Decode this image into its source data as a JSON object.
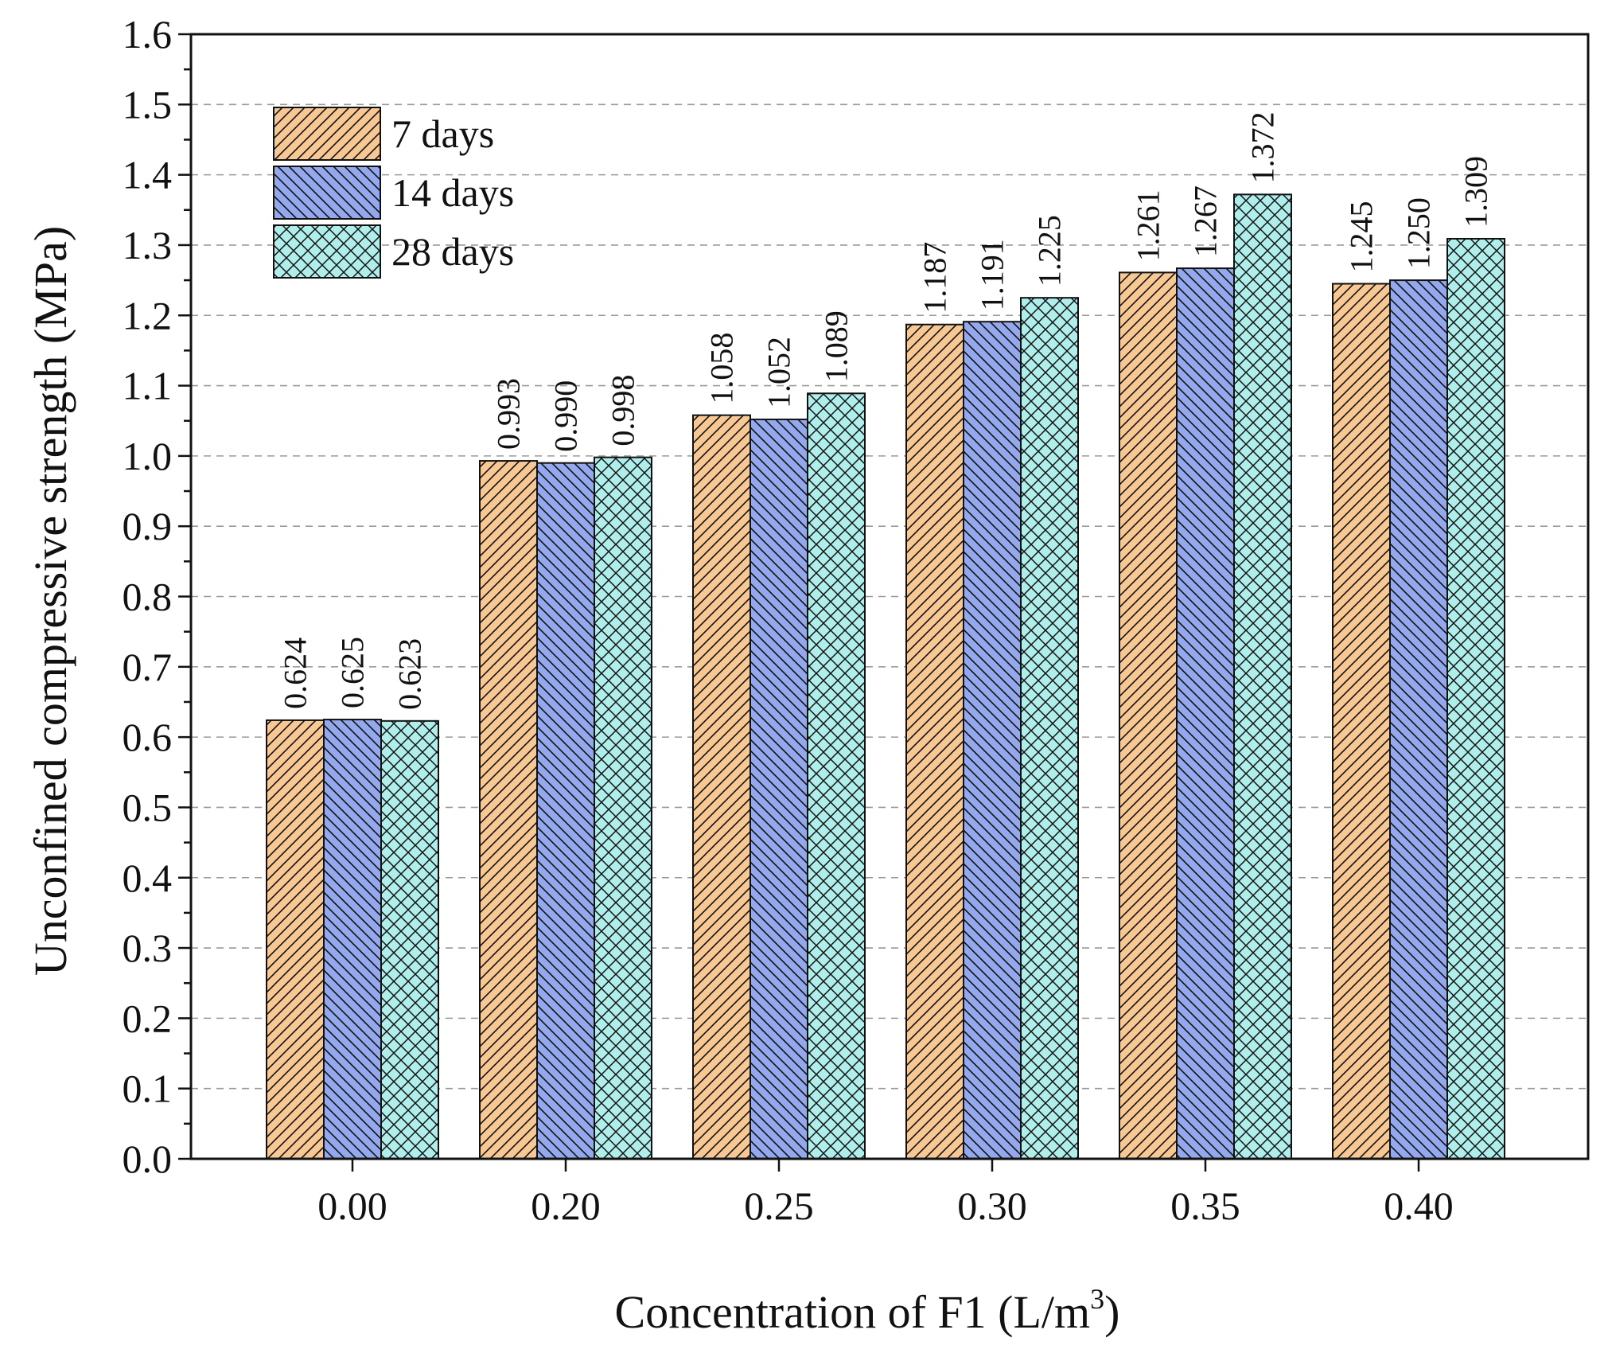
{
  "chart_data": {
    "type": "bar",
    "title": "",
    "xlabel": "Concentration of F1 (L/m",
    "xlabel_sup": "3",
    "xlabel_suffix": ")",
    "ylabel": "Unconfined compressive strength (MPa)",
    "categories": [
      "0.00",
      "0.20",
      "0.25",
      "0.30",
      "0.35",
      "0.40"
    ],
    "series": [
      {
        "name": "7 days",
        "values": [
          0.624,
          0.993,
          1.058,
          1.187,
          1.261,
          1.245
        ],
        "labels": [
          "0.624",
          "0.993",
          "1.058",
          "1.187",
          "1.261",
          "1.245"
        ],
        "color": "#F8C894",
        "pattern": "forward-diagonal"
      },
      {
        "name": "14 days",
        "values": [
          0.625,
          0.99,
          1.052,
          1.191,
          1.267,
          1.25
        ],
        "labels": [
          "0.625",
          "0.990",
          "1.052",
          "1.191",
          "1.267",
          "1.250"
        ],
        "color": "#94A8EE",
        "pattern": "back-diagonal"
      },
      {
        "name": "28 days",
        "values": [
          0.623,
          0.998,
          1.089,
          1.225,
          1.372,
          1.309
        ],
        "labels": [
          "0.623",
          "0.998",
          "1.089",
          "1.225",
          "1.372",
          "1.309"
        ],
        "color": "#B0EEEB",
        "pattern": "crosshatch"
      }
    ],
    "ylim": [
      0.0,
      1.6
    ],
    "yticks": [
      "0.0",
      "0.1",
      "0.2",
      "0.3",
      "0.4",
      "0.5",
      "0.6",
      "0.7",
      "0.8",
      "0.9",
      "1.0",
      "1.1",
      "1.2",
      "1.3",
      "1.4",
      "1.5",
      "1.6"
    ],
    "grid": "horizontal-dashed",
    "legend_position": "top-left"
  }
}
